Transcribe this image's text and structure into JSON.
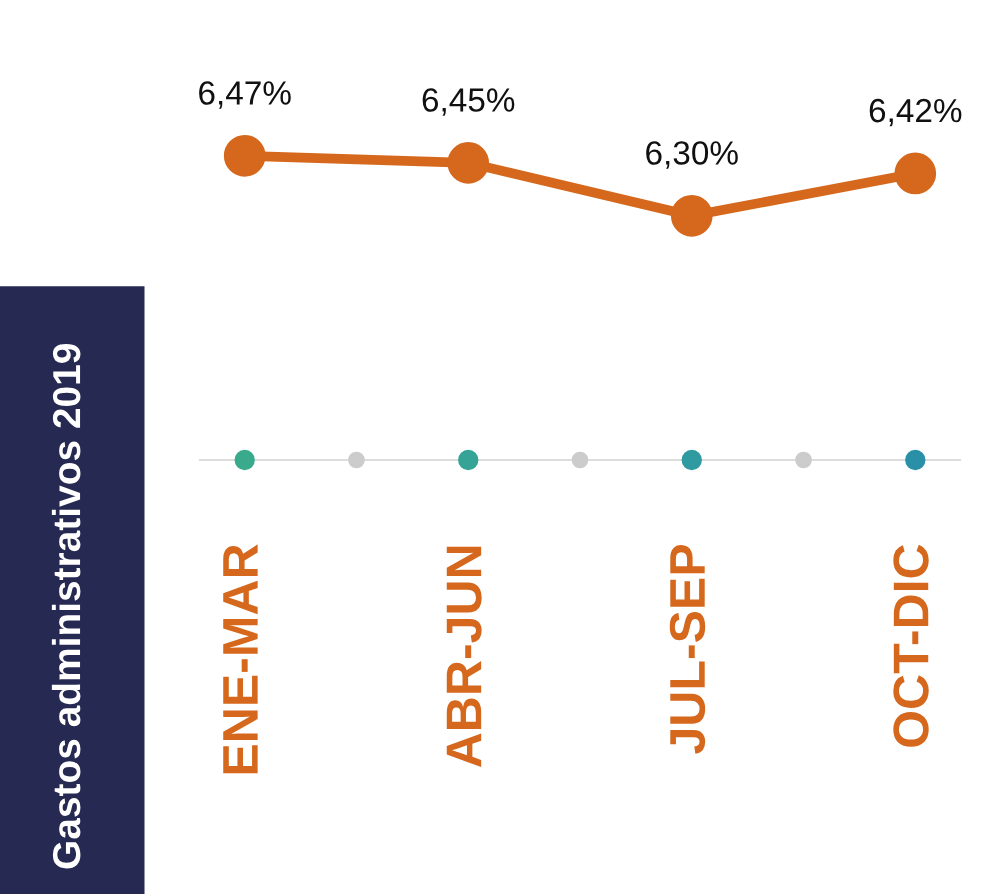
{
  "chart_data": {
    "type": "line",
    "title": "Gastos administrativos 2019",
    "categories": [
      "ENE-MAR",
      "ABR-JUN",
      "JUL-SEP",
      "OCT-DIC"
    ],
    "series": [
      {
        "color": "#d5681c",
        "values": [
          6.47,
          6.45,
          6.3,
          6.42
        ],
        "value_labels": [
          "6,47%",
          "6,45%",
          "6,30%",
          "6,42%"
        ]
      }
    ],
    "marker": "circle",
    "line_style": "solid",
    "grid": false,
    "legend": false
  }
}
